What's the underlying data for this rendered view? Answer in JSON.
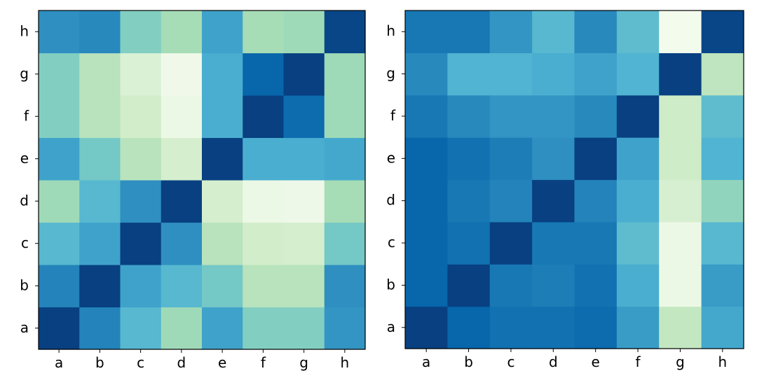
{
  "chart_data": [
    {
      "type": "heatmap",
      "title": "",
      "xlabel": "",
      "ylabel": "",
      "x_categories": [
        "a",
        "b",
        "c",
        "d",
        "e",
        "f",
        "g",
        "h"
      ],
      "y_categories": [
        "a",
        "b",
        "c",
        "d",
        "e",
        "f",
        "g",
        "h"
      ],
      "colormap": "GnBu",
      "vmin": 0,
      "vmax": 1,
      "values": [
        [
          1.0,
          0.78,
          0.6,
          0.4,
          0.68,
          0.48,
          0.48,
          0.72
        ],
        [
          0.78,
          1.0,
          0.68,
          0.6,
          0.52,
          0.32,
          0.32,
          0.74
        ],
        [
          0.6,
          0.68,
          1.0,
          0.74,
          0.32,
          0.22,
          0.2,
          0.52
        ],
        [
          0.4,
          0.6,
          0.74,
          1.0,
          0.2,
          0.06,
          0.05,
          0.38
        ],
        [
          0.68,
          0.52,
          0.32,
          0.2,
          1.0,
          0.64,
          0.64,
          0.66
        ],
        [
          0.48,
          0.32,
          0.22,
          0.06,
          0.64,
          1.0,
          0.86,
          0.4
        ],
        [
          0.48,
          0.32,
          0.16,
          0.04,
          0.64,
          0.88,
          1.0,
          0.4
        ],
        [
          0.74,
          0.76,
          0.48,
          0.38,
          0.68,
          0.38,
          0.4,
          0.98
        ]
      ]
    },
    {
      "type": "heatmap",
      "title": "",
      "xlabel": "",
      "ylabel": "",
      "x_categories": [
        "a",
        "b",
        "c",
        "d",
        "e",
        "f",
        "g",
        "h"
      ],
      "y_categories": [
        "a",
        "b",
        "c",
        "d",
        "e",
        "f",
        "g",
        "h"
      ],
      "colormap": "GnBu",
      "vmin": 0,
      "vmax": 1,
      "values": [
        [
          1.0,
          0.88,
          0.84,
          0.84,
          0.86,
          0.7,
          0.28,
          0.66
        ],
        [
          0.88,
          1.0,
          0.82,
          0.8,
          0.84,
          0.64,
          0.06,
          0.7
        ],
        [
          0.88,
          0.84,
          1.0,
          0.82,
          0.82,
          0.58,
          0.06,
          0.6
        ],
        [
          0.88,
          0.82,
          0.78,
          1.0,
          0.78,
          0.64,
          0.18,
          0.44
        ],
        [
          0.88,
          0.84,
          0.8,
          0.74,
          1.0,
          0.68,
          0.24,
          0.62
        ],
        [
          0.82,
          0.76,
          0.72,
          0.72,
          0.76,
          1.0,
          0.24,
          0.58
        ],
        [
          0.76,
          0.62,
          0.62,
          0.64,
          0.68,
          0.62,
          1.0,
          0.3
        ],
        [
          0.82,
          0.82,
          0.72,
          0.6,
          0.76,
          0.58,
          0.02,
          0.98
        ]
      ]
    }
  ]
}
